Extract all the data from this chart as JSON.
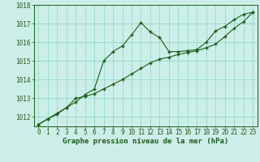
{
  "xlabel": "Graphe pression niveau de la mer (hPa)",
  "bg_color": "#cceee8",
  "grid_color": "#99ddcc",
  "line_color": "#1a5c1a",
  "x_values": [
    0,
    1,
    2,
    3,
    4,
    5,
    6,
    7,
    8,
    9,
    10,
    11,
    12,
    13,
    14,
    15,
    16,
    17,
    18,
    19,
    20,
    21,
    22,
    23
  ],
  "series1": [
    1011.6,
    1011.9,
    1012.2,
    1012.5,
    1012.8,
    1013.2,
    1013.5,
    1015.0,
    1015.5,
    1015.8,
    1016.4,
    1017.05,
    1016.55,
    1016.25,
    1015.5,
    1015.5,
    1015.55,
    1015.6,
    1016.0,
    1016.6,
    1016.85,
    1017.2,
    1017.5,
    1017.6
  ],
  "series2": [
    1011.6,
    1011.9,
    1012.15,
    1012.5,
    1013.0,
    1013.1,
    1013.25,
    1013.5,
    1013.75,
    1014.0,
    1014.3,
    1014.6,
    1014.9,
    1015.1,
    1015.2,
    1015.35,
    1015.45,
    1015.55,
    1015.7,
    1015.9,
    1016.3,
    1016.75,
    1017.1,
    1017.6
  ],
  "ylim_min": 1011.5,
  "ylim_max": 1018.0,
  "yticks": [
    1012,
    1013,
    1014,
    1015,
    1016,
    1017,
    1018
  ],
  "xticks": [
    0,
    1,
    2,
    3,
    4,
    5,
    6,
    7,
    8,
    9,
    10,
    11,
    12,
    13,
    14,
    15,
    16,
    17,
    18,
    19,
    20,
    21,
    22,
    23
  ],
  "tick_fontsize": 5.5,
  "xlabel_fontsize": 6.5
}
